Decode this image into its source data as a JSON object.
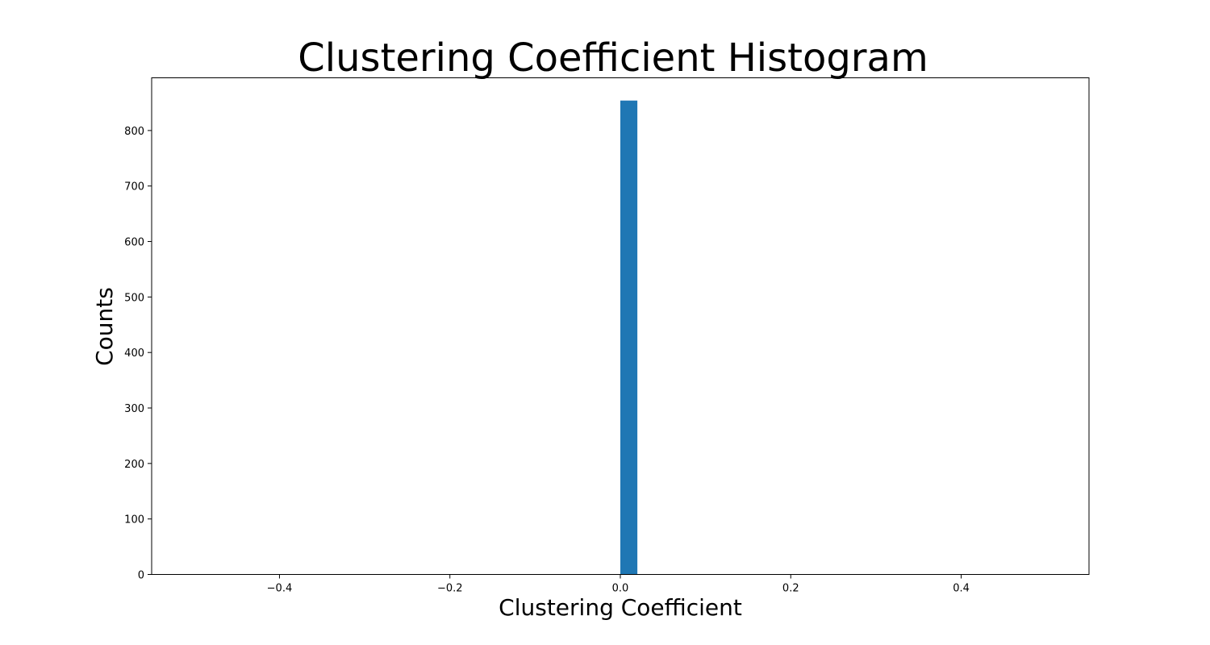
{
  "chart_data": {
    "type": "bar",
    "title": "Clustering Coefficient Histogram",
    "xlabel": "Clustering Coefficient",
    "ylabel": "Counts",
    "xlim": [
      -0.55,
      0.55
    ],
    "ylim": [
      0,
      895
    ],
    "xticks": [
      -0.4,
      -0.2,
      0.0,
      0.2,
      0.4
    ],
    "xtick_labels": [
      "−0.4",
      "−0.2",
      "0.0",
      "0.2",
      "0.4"
    ],
    "yticks": [
      0,
      100,
      200,
      300,
      400,
      500,
      600,
      700,
      800
    ],
    "ytick_labels": [
      "0",
      "100",
      "200",
      "300",
      "400",
      "500",
      "600",
      "700",
      "800"
    ],
    "bins": [
      {
        "x_start": 0.0,
        "x_end": 0.02,
        "count": 854
      }
    ],
    "bar_color": "#1f77b4",
    "grid": false,
    "legend": false
  }
}
